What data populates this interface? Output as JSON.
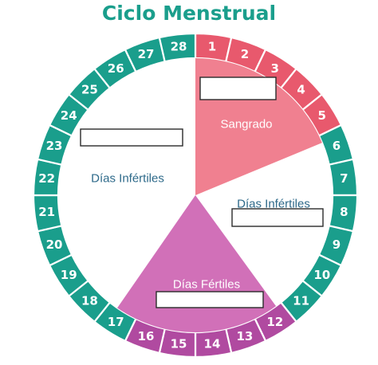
{
  "title": "Ciclo Menstrual",
  "colors": {
    "teal": "#1a9e8c",
    "red": "#e8596d",
    "red_light": "#f08090",
    "magenta": "#b04aa0",
    "magenta_light": "#d170b8",
    "label_blue": "#2e6a8a",
    "label_white": "#ffffff"
  },
  "days": [
    {
      "n": "1",
      "phase": "menstrual"
    },
    {
      "n": "2",
      "phase": "menstrual"
    },
    {
      "n": "3",
      "phase": "menstrual"
    },
    {
      "n": "4",
      "phase": "menstrual"
    },
    {
      "n": "5",
      "phase": "menstrual"
    },
    {
      "n": "6",
      "phase": "infertile"
    },
    {
      "n": "7",
      "phase": "infertile"
    },
    {
      "n": "8",
      "phase": "infertile"
    },
    {
      "n": "9",
      "phase": "infertile"
    },
    {
      "n": "10",
      "phase": "infertile"
    },
    {
      "n": "11",
      "phase": "infertile"
    },
    {
      "n": "12",
      "phase": "fertile"
    },
    {
      "n": "13",
      "phase": "fertile"
    },
    {
      "n": "14",
      "phase": "fertile"
    },
    {
      "n": "15",
      "phase": "fertile"
    },
    {
      "n": "16",
      "phase": "fertile"
    },
    {
      "n": "17",
      "phase": "infertile"
    },
    {
      "n": "18",
      "phase": "infertile"
    },
    {
      "n": "19",
      "phase": "infertile"
    },
    {
      "n": "20",
      "phase": "infertile"
    },
    {
      "n": "21",
      "phase": "infertile"
    },
    {
      "n": "22",
      "phase": "infertile"
    },
    {
      "n": "23",
      "phase": "infertile"
    },
    {
      "n": "24",
      "phase": "infertile"
    },
    {
      "n": "25",
      "phase": "infertile"
    },
    {
      "n": "26",
      "phase": "infertile"
    },
    {
      "n": "27",
      "phase": "infertile"
    },
    {
      "n": "28",
      "phase": "infertile"
    }
  ],
  "labels": {
    "bleeding": "Sangrado",
    "infertile_left": "Días Infértiles",
    "infertile_right": "Días Infértiles",
    "fertile": "Días Fértiles"
  }
}
